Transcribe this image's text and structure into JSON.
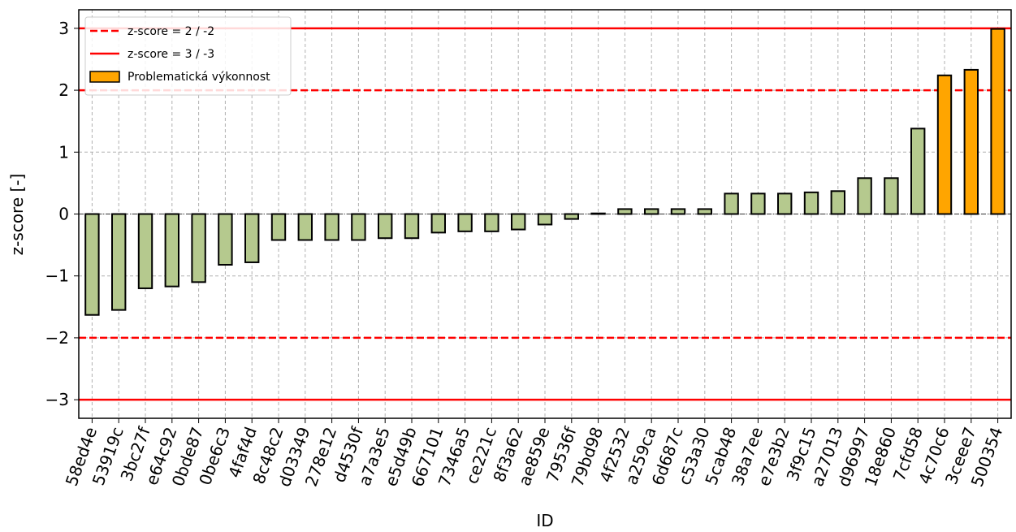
{
  "chart_data": {
    "type": "bar",
    "x_label": "ID",
    "y_label": "z-score [-]",
    "categories": [
      "58ed4e",
      "53919c",
      "3bc27f",
      "e64c92",
      "0bde87",
      "0be6c3",
      "4faf4d",
      "8c48c2",
      "d03349",
      "278e12",
      "d4530f",
      "a7a3e5",
      "e5d49b",
      "667101",
      "7346a5",
      "ce221c",
      "8f3a62",
      "ae859e",
      "79536f",
      "79bd98",
      "4f2532",
      "a259ca",
      "6d687c",
      "c53a30",
      "5cab48",
      "38a7ee",
      "e7e3b2",
      "3f9c15",
      "a27013",
      "d96997",
      "18e860",
      "7cfd58",
      "4c70c6",
      "3ceee7",
      "500354"
    ],
    "values": [
      -1.63,
      -1.55,
      -1.2,
      -1.17,
      -1.1,
      -0.82,
      -0.78,
      -0.42,
      -0.42,
      -0.42,
      -0.42,
      -0.39,
      -0.39,
      -0.3,
      -0.28,
      -0.28,
      -0.25,
      -0.17,
      -0.08,
      0.01,
      0.08,
      0.08,
      0.08,
      0.08,
      0.33,
      0.33,
      0.33,
      0.35,
      0.37,
      0.58,
      0.58,
      1.38,
      2.24,
      2.33,
      2.99
    ],
    "colors": [
      "#b5c98e",
      "#b5c98e",
      "#b5c98e",
      "#b5c98e",
      "#b5c98e",
      "#b5c98e",
      "#b5c98e",
      "#b5c98e",
      "#b5c98e",
      "#b5c98e",
      "#b5c98e",
      "#b5c98e",
      "#b5c98e",
      "#b5c98e",
      "#b5c98e",
      "#b5c98e",
      "#b5c98e",
      "#b5c98e",
      "#b5c98e",
      "#b5c98e",
      "#b5c98e",
      "#b5c98e",
      "#b5c98e",
      "#b5c98e",
      "#b5c98e",
      "#b5c98e",
      "#b5c98e",
      "#b5c98e",
      "#b5c98e",
      "#b5c98e",
      "#b5c98e",
      "#b5c98e",
      "#ffa500",
      "#ffa500",
      "#ffa500"
    ],
    "ylim": [
      -3.3,
      3.3
    ],
    "yticks": [
      {
        "value": -3,
        "label": "−3"
      },
      {
        "value": -2,
        "label": "−2"
      },
      {
        "value": -1,
        "label": "−1"
      },
      0,
      1,
      2,
      3
    ],
    "grid": true,
    "reference_lines": [
      {
        "label": "z-score = 2 / -2",
        "values": [
          2,
          -2
        ],
        "style": "dashed",
        "color": "#ff0000"
      },
      {
        "label": "z-score = 3 / -3",
        "values": [
          3,
          -3
        ],
        "style": "solid",
        "color": "#ff0000"
      }
    ],
    "highlight": {
      "label": "Problematická výkonnost",
      "color": "#ffa500"
    },
    "legend_position": "upper left"
  }
}
